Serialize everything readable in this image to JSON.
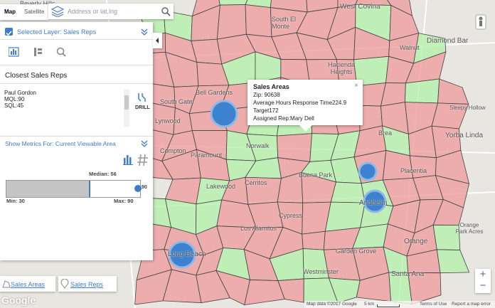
{
  "map_controls": {
    "map_tab": "Map",
    "satellite_tab": "Satellite",
    "search_placeholder": "Address or lat,lng"
  },
  "panel": {
    "layer": "Selected Layer: Sales Reps",
    "section_title": "Closest Sales Reps",
    "rep": {
      "name": "Paul Gordon",
      "mql": "MQL:90",
      "sql": "SQL:45"
    },
    "drill": "DRILL",
    "metrics": "Show Metrics For: Current Viewable Area",
    "median": "Median: 56",
    "value": "90",
    "min": "Min: 30",
    "max": "Max: 90"
  },
  "popup": {
    "title": "Sales Areas",
    "lines": [
      "Zip: 90638",
      "Average Hours Response Time224.9",
      "Target172",
      "Assigned Rep:Mary Dell"
    ]
  },
  "places": [
    "Beverly Hills",
    "South El Monte",
    "West Covina",
    "Diamond Bar",
    "Walnut",
    "Hacienda Heights",
    "Bell Gardens",
    "South Gate",
    "Lynwood",
    "Compton",
    "Paramount",
    "Norwalk",
    "Brea",
    "Yorba Linda",
    "Sleepy Hollow",
    "Placentia",
    "Buena Park",
    "Cerritos",
    "Lakewood",
    "Cypress",
    "Anaheim",
    "Los Alamitos",
    "Garden Grove",
    "Orange",
    "Westminster",
    "Santa Ana",
    "Long Beach",
    "Orange Park Acres"
  ],
  "layers": [
    "Sales Areas",
    "Sales Reps"
  ],
  "footer": {
    "google": "Google",
    "attribution": "Map data ©2017 Google",
    "scale": "5 km",
    "terms": "Terms of Use",
    "report": "Report a map error"
  }
}
